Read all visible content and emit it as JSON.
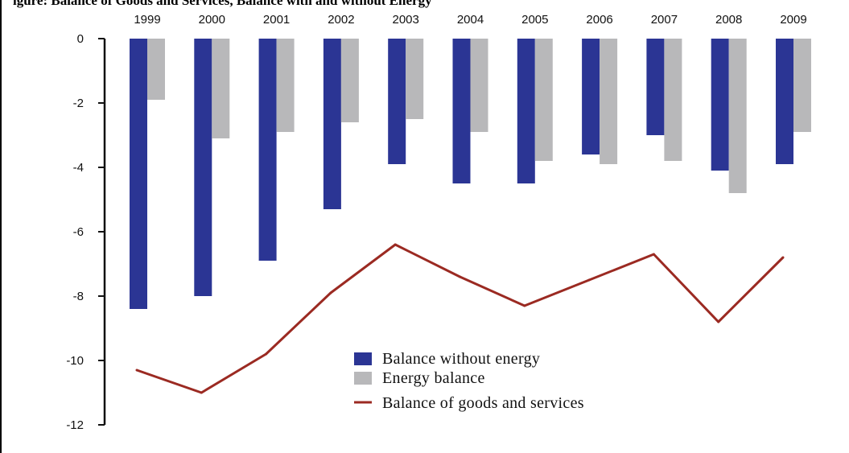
{
  "header": {
    "cut_title": "igure: Balance of Goods and Services, Balance with and without Energy"
  },
  "chart_data": {
    "type": "bar",
    "categories": [
      "1999",
      "2000",
      "2001",
      "2002",
      "2003",
      "2004",
      "2005",
      "2006",
      "2007",
      "2008",
      "2009"
    ],
    "series": [
      {
        "name": "Balance without energy",
        "type": "bar",
        "color": "#2b3594",
        "values": [
          -8.4,
          -8.0,
          -6.9,
          -5.3,
          -3.9,
          -4.5,
          -4.5,
          -3.6,
          -3.0,
          -4.1,
          -3.9
        ]
      },
      {
        "name": "Energy balance",
        "type": "bar",
        "color": "#b8b8ba",
        "values": [
          -1.9,
          -3.1,
          -2.9,
          -2.6,
          -2.5,
          -2.9,
          -3.8,
          -3.9,
          -3.8,
          -4.8,
          -2.9
        ]
      },
      {
        "name": "Balance of goods and services",
        "type": "line",
        "color": "#9b2a22",
        "values": [
          -10.3,
          -11.0,
          -9.8,
          -7.9,
          -6.4,
          -7.4,
          -8.3,
          -7.5,
          -6.7,
          -8.8,
          -6.8
        ]
      }
    ],
    "yticks": [
      "0",
      "-2",
      "-4",
      "-6",
      "-8",
      "-10",
      "-12"
    ],
    "ylim": [
      -12,
      0
    ],
    "title": "",
    "xlabel": "",
    "ylabel": "",
    "legend_position": "bottom-center",
    "grid": false,
    "xaxis_position": "top"
  }
}
